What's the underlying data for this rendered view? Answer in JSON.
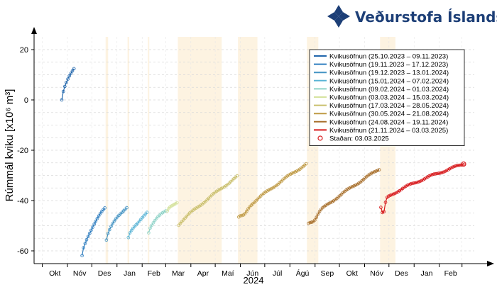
{
  "brand": {
    "name": "Veðurstofa Íslands",
    "color": "#1d3f77",
    "icon": "vedurstofa-logo-icon"
  },
  "chart_data": {
    "type": "scatter",
    "title": "",
    "xlabel": "2024",
    "ylabel": "Rúmmál kviku [x10⁶ m³]",
    "ylim": [
      -65,
      22
    ],
    "yticks": [
      20,
      0,
      -20,
      -40,
      -60
    ],
    "grid": true,
    "legend_position": "top-right",
    "x_tick_labels": [
      "Okt",
      "Nóv",
      "Des",
      "Jan",
      "Feb",
      "Mar",
      "Apr",
      "Maí",
      "Jún",
      "Júl",
      "Ágú",
      "Sep",
      "Okt",
      "Nóv",
      "Des",
      "Jan",
      "Feb"
    ],
    "x_month_starts": [
      "2023-10-01",
      "2023-11-01",
      "2023-12-01",
      "2024-01-01",
      "2024-02-01",
      "2024-03-01",
      "2024-04-01",
      "2024-05-01",
      "2024-06-01",
      "2024-07-01",
      "2024-08-01",
      "2024-09-01",
      "2024-10-01",
      "2024-11-01",
      "2024-12-01",
      "2025-01-01",
      "2025-02-01",
      "2025-03-01"
    ],
    "eruption_periods": [
      {
        "start": "2023-12-18",
        "end": "2023-12-21"
      },
      {
        "start": "2024-01-14",
        "end": "2024-01-16"
      },
      {
        "start": "2024-02-08",
        "end": "2024-02-09"
      },
      {
        "start": "2024-03-16",
        "end": "2024-05-09"
      },
      {
        "start": "2024-05-29",
        "end": "2024-06-22"
      },
      {
        "start": "2024-08-22",
        "end": "2024-09-05"
      },
      {
        "start": "2024-11-20",
        "end": "2024-12-09"
      }
    ],
    "series": [
      {
        "name": "Kvikusöfnun (25.10.2023 – 09.11.2023)",
        "color": "#2166ac",
        "x": [
          "2023-10-25",
          "2023-11-09"
        ],
        "y_start": 0,
        "y_end": 12.5,
        "shape": "sqrt"
      },
      {
        "name": "Kvikusöfnun (19.11.2023 – 17.12.2023)",
        "color": "#2e7dbf",
        "x": [
          "2023-11-19",
          "2023-12-17"
        ],
        "y_start": -62,
        "y_end": -43,
        "shape": "sqrt"
      },
      {
        "name": "Kvikusöfnun (19.12.2023 – 13.01.2024)",
        "color": "#4393c3",
        "x": [
          "2023-12-19",
          "2024-01-13"
        ],
        "y_start": -55.5,
        "y_end": -42.5,
        "shape": "sqrt"
      },
      {
        "name": "Kvikusöfnun (15.01.2024 – 07.02.2024)",
        "color": "#5ab4d6",
        "x": [
          "2024-01-15",
          "2024-02-07"
        ],
        "y_start": -55,
        "y_end": -45,
        "shape": "sqrt"
      },
      {
        "name": "Kvikusöfnun (09.02.2024 – 01.03.2024)",
        "color": "#8fd3c8",
        "x": [
          "2024-02-09",
          "2024-03-01"
        ],
        "y_start": -52.5,
        "y_end": -44,
        "shape": "sqrt"
      },
      {
        "name": "Kvikusöfnun (03.03.2024 – 15.03.2024)",
        "color": "#d6e3a0",
        "x": [
          "2024-03-03",
          "2024-03-15"
        ],
        "y_start": -44.5,
        "y_end": -40.5,
        "shape": "sqrt"
      },
      {
        "name": "Kvikusöfnun (17.03.2024 – 28.05.2024)",
        "color": "#c9bf6c",
        "x": [
          "2024-03-17",
          "2024-05-28"
        ],
        "y_start": -49.5,
        "y_end": -30.5,
        "shape": "convex"
      },
      {
        "name": "Kvikusöfnun (30.05.2024 – 21.08.2024)",
        "color": "#bf9a45",
        "x": [
          "2024-05-30",
          "2024-08-21"
        ],
        "y_start": -46.5,
        "y_end": -25.5,
        "shape": "dip"
      },
      {
        "name": "Kvikusöfnun (24.08.2024 – 19.11.2024)",
        "color": "#a8702d",
        "x": [
          "2024-08-24",
          "2024-11-19"
        ],
        "y_start": -48.5,
        "y_end": -27.5,
        "shape": "dip"
      },
      {
        "name": "Kvikusöfnun (21.11.2024 – 03.03.2025)",
        "color": "#d7191c",
        "x": [
          "2024-11-21",
          "2025-03-03"
        ],
        "y_start": -41.5,
        "y_end": -25.5,
        "shape": "dipsqrt"
      }
    ],
    "current_marker": {
      "label": "Staðan: 03.03.2025",
      "color": "#d7191c",
      "x": "2025-03-03",
      "y": -25.5
    }
  }
}
